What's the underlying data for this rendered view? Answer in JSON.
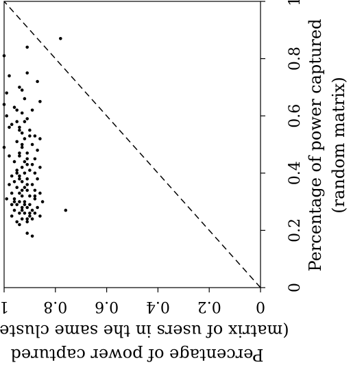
{
  "chart_data": {
    "type": "scatter",
    "title": "",
    "orientation": "rotated-90",
    "xlabel_lines": [
      "Percentage of power captured",
      "(random matrix)"
    ],
    "ylabel_lines": [
      "Percentage of power captured",
      "(matrix of users in the same cluster)"
    ],
    "xlim": [
      0,
      1
    ],
    "ylim": [
      0,
      1
    ],
    "x_ticks": [
      "0",
      "0.2",
      "0.4",
      "0.6",
      "0.8",
      "1"
    ],
    "y_ticks": [
      "0",
      "0.2",
      "0.4",
      "0.6",
      "0.8",
      "1"
    ],
    "grid": false,
    "reference_line": {
      "style": "dashed",
      "from": [
        0,
        0
      ],
      "to": [
        1,
        1
      ]
    },
    "colors": {
      "points": "#000000",
      "axes": "#000000"
    },
    "points": [
      [
        0.87,
        0.78
      ],
      [
        0.84,
        0.91
      ],
      [
        0.81,
        1.0
      ],
      [
        0.75,
        0.91
      ],
      [
        0.74,
        0.98
      ],
      [
        0.72,
        0.87
      ],
      [
        0.7,
        0.94
      ],
      [
        0.69,
        0.93
      ],
      [
        0.68,
        0.99
      ],
      [
        0.66,
        0.92
      ],
      [
        0.65,
        0.86
      ],
      [
        0.64,
        1.0
      ],
      [
        0.63,
        0.96
      ],
      [
        0.62,
        0.89
      ],
      [
        0.61,
        0.93
      ],
      [
        0.6,
        0.99
      ],
      [
        0.59,
        0.91
      ],
      [
        0.58,
        0.95
      ],
      [
        0.57,
        0.97
      ],
      [
        0.56,
        0.94
      ],
      [
        0.56,
        0.98
      ],
      [
        0.55,
        0.9
      ],
      [
        0.54,
        0.93
      ],
      [
        0.53,
        0.88
      ],
      [
        0.52,
        0.86
      ],
      [
        0.52,
        0.92
      ],
      [
        0.51,
        0.95
      ],
      [
        0.5,
        0.89
      ],
      [
        0.49,
        1.0
      ],
      [
        0.49,
        0.93
      ],
      [
        0.48,
        0.87
      ],
      [
        0.47,
        0.91
      ],
      [
        0.46,
        0.98
      ],
      [
        0.46,
        0.94
      ],
      [
        0.45,
        0.88
      ],
      [
        0.44,
        0.92
      ],
      [
        0.44,
        0.96
      ],
      [
        0.43,
        0.89
      ],
      [
        0.42,
        0.93
      ],
      [
        0.42,
        0.86
      ],
      [
        0.41,
        0.95
      ],
      [
        0.41,
        0.9
      ],
      [
        0.4,
        0.92
      ],
      [
        0.4,
        0.88
      ],
      [
        0.39,
        0.97
      ],
      [
        0.39,
        0.94
      ],
      [
        0.38,
        0.91
      ],
      [
        0.38,
        0.87
      ],
      [
        0.37,
        0.96
      ],
      [
        0.37,
        0.93
      ],
      [
        0.36,
        0.89
      ],
      [
        0.36,
        0.98
      ],
      [
        0.35,
        0.92
      ],
      [
        0.35,
        0.95
      ],
      [
        0.34,
        0.88
      ],
      [
        0.34,
        0.91
      ],
      [
        0.33,
        0.94
      ],
      [
        0.33,
        0.97
      ],
      [
        0.33,
        0.86
      ],
      [
        0.32,
        0.9
      ],
      [
        0.32,
        0.93
      ],
      [
        0.31,
        0.96
      ],
      [
        0.31,
        0.88
      ],
      [
        0.31,
        0.99
      ],
      [
        0.3,
        0.92
      ],
      [
        0.3,
        0.94
      ],
      [
        0.3,
        0.85
      ],
      [
        0.29,
        0.9
      ],
      [
        0.29,
        0.95
      ],
      [
        0.29,
        0.97
      ],
      [
        0.28,
        0.87
      ],
      [
        0.28,
        0.91
      ],
      [
        0.28,
        0.93
      ],
      [
        0.27,
        0.89
      ],
      [
        0.27,
        0.96
      ],
      [
        0.27,
        0.76
      ],
      [
        0.26,
        0.92
      ],
      [
        0.26,
        0.88
      ],
      [
        0.26,
        0.94
      ],
      [
        0.25,
        0.9
      ],
      [
        0.25,
        0.86
      ],
      [
        0.25,
        0.97
      ],
      [
        0.24,
        0.93
      ],
      [
        0.24,
        0.89
      ],
      [
        0.23,
        0.95
      ],
      [
        0.23,
        0.91
      ],
      [
        0.22,
        0.94
      ],
      [
        0.19,
        0.91
      ],
      [
        0.18,
        0.89
      ],
      [
        0.53,
        0.9
      ],
      [
        0.47,
        0.94
      ],
      [
        0.43,
        0.91
      ],
      [
        0.38,
        0.94
      ],
      [
        0.36,
        0.91
      ],
      [
        0.34,
        0.93
      ],
      [
        0.32,
        0.88
      ],
      [
        0.29,
        0.92
      ],
      [
        0.27,
        0.93
      ],
      [
        0.26,
        0.9
      ],
      [
        0.24,
        0.91
      ],
      [
        0.3,
        0.96
      ],
      [
        0.4,
        0.95
      ],
      [
        0.45,
        0.91
      ],
      [
        0.5,
        0.93
      ],
      [
        0.55,
        0.94
      ],
      [
        0.58,
        0.92
      ],
      [
        0.62,
        0.95
      ]
    ]
  }
}
